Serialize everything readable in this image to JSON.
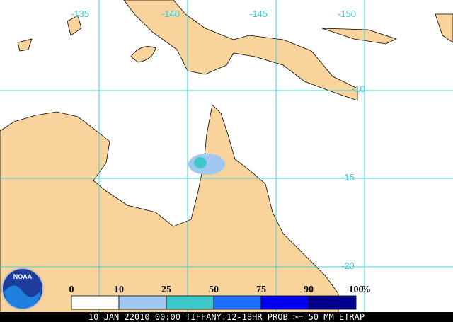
{
  "map": {
    "lon_labels": [
      "-135",
      "-140",
      "-145",
      "-150"
    ],
    "lat_labels": [
      "-10",
      "-15",
      "-20"
    ],
    "legend": {
      "labels": [
        "0",
        "10",
        "25",
        "50",
        "75",
        "90",
        "100"
      ],
      "unit": "%",
      "colors": [
        "#ffffff",
        "#a0c8f0",
        "#3cc8c8",
        "#1e6eff",
        "#0000f0",
        "#00008c"
      ]
    },
    "logo": "NOAA",
    "footer": "10 JAN 22010 00:00 TIFFANY:12-18HR PROB >= 50 MM ETRAP"
  }
}
